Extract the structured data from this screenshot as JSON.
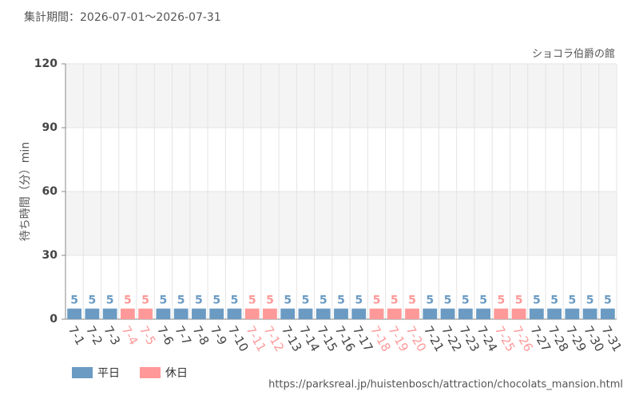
{
  "chart_data": {
    "type": "bar",
    "title": "集計期間：2026-07-01〜2026-07-31",
    "subtitle": "ショコラ伯爵の館",
    "ylabel": "待ち時間（分）min",
    "source": "https://parksreal.jp/huistenbosch/attraction/chocolats_mansion.html",
    "categories": [
      "7-1",
      "7-2",
      "7-3",
      "7-4",
      "7-5",
      "7-6",
      "7-7",
      "7-8",
      "7-9",
      "7-10",
      "7-11",
      "7-12",
      "7-13",
      "7-14",
      "7-15",
      "7-16",
      "7-17",
      "7-18",
      "7-19",
      "7-20",
      "7-21",
      "7-22",
      "7-23",
      "7-24",
      "7-25",
      "7-26",
      "7-27",
      "7-28",
      "7-29",
      "7-30",
      "7-31"
    ],
    "series": [
      {
        "name": "平日",
        "color": "#6b9bc3",
        "values": [
          5,
          5,
          5,
          null,
          null,
          5,
          5,
          5,
          5,
          5,
          null,
          null,
          5,
          5,
          5,
          5,
          5,
          null,
          null,
          null,
          5,
          5,
          5,
          5,
          null,
          null,
          5,
          5,
          5,
          5,
          5
        ]
      },
      {
        "name": "休日",
        "color": "#ff9999",
        "values": [
          null,
          null,
          null,
          5,
          5,
          null,
          null,
          null,
          null,
          null,
          5,
          5,
          null,
          null,
          null,
          null,
          null,
          5,
          5,
          5,
          null,
          null,
          null,
          null,
          5,
          5,
          null,
          null,
          null,
          null,
          null
        ]
      }
    ],
    "ylim": [
      0,
      120
    ],
    "yticks": [
      0,
      30,
      60,
      90,
      120
    ],
    "grid": true
  }
}
